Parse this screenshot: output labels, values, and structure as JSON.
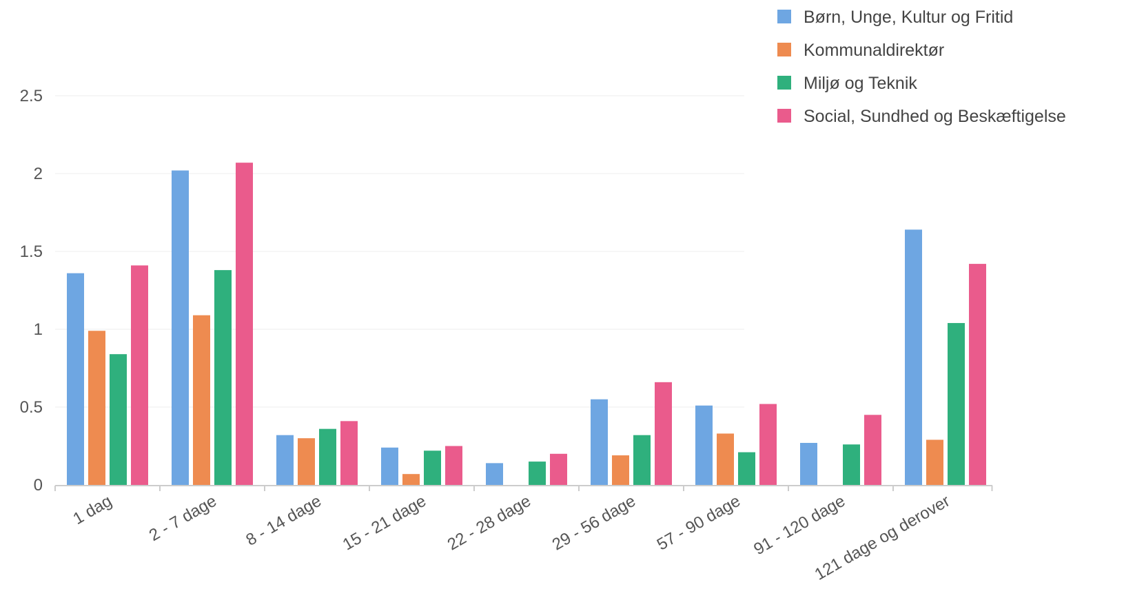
{
  "chart_data": {
    "type": "bar",
    "categories": [
      "1 dag",
      "2 - 7 dage",
      "8 - 14 dage",
      "15 - 21 dage",
      "22 - 28 dage",
      "29 - 56 dage",
      "57 - 90 dage",
      "91 - 120 dage",
      "121 dage og derover"
    ],
    "series": [
      {
        "name": "Børn, Unge, Kultur og Fritid",
        "color": "#6ea6e2",
        "values": [
          1.36,
          2.02,
          0.32,
          0.24,
          0.14,
          0.55,
          0.51,
          0.27,
          1.64
        ]
      },
      {
        "name": "Kommunaldirektør",
        "color": "#ee8b50",
        "values": [
          0.99,
          1.09,
          0.3,
          0.07,
          0,
          0.19,
          0.33,
          0,
          0.29
        ]
      },
      {
        "name": "Miljø og Teknik",
        "color": "#2fb07d",
        "values": [
          0.84,
          1.38,
          0.36,
          0.22,
          0.15,
          0.32,
          0.21,
          0.26,
          1.04
        ]
      },
      {
        "name": "Social, Sundhed og Beskæftigelse",
        "color": "#ea5b8c",
        "values": [
          1.41,
          2.07,
          0.41,
          0.25,
          0.2,
          0.66,
          0.52,
          0.45,
          1.42
        ]
      }
    ],
    "y_ticks": [
      "0",
      "0.5",
      "1",
      "1.5",
      "2",
      "2.5"
    ],
    "ylim": [
      0,
      2.5
    ],
    "grid": true,
    "legend_position": "top-right",
    "title": "",
    "xlabel": "",
    "ylabel": ""
  }
}
